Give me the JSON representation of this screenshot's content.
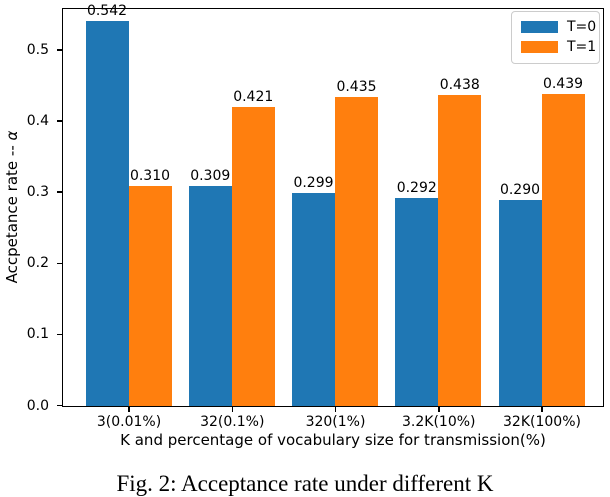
{
  "figure": {
    "ylabel_prefix": "Accpetance rate -- ",
    "ylabel_alpha": "α",
    "xlabel": "K and percentage of vocabulary size for transmission(%)",
    "caption": "Fig. 2: Acceptance rate under different K"
  },
  "legend": {
    "position": "upper right",
    "items": [
      {
        "label": "T=0",
        "color": "#1f77b4"
      },
      {
        "label": "T=1",
        "color": "#ff7f0e"
      }
    ]
  },
  "chart_data": {
    "type": "bar",
    "title": "",
    "categories": [
      "3(0.01%)",
      "32(0.1%)",
      "320(1%)",
      "3.2K(10%)",
      "32K(100%)"
    ],
    "series": [
      {
        "name": "T=0",
        "color": "#1f77b4",
        "values": [
          0.542,
          0.309,
          0.299,
          0.292,
          0.29
        ]
      },
      {
        "name": "T=1",
        "color": "#ff7f0e",
        "values": [
          0.31,
          0.421,
          0.435,
          0.438,
          0.439
        ]
      }
    ],
    "bar_value_labels": [
      "0.542",
      "0.310",
      "0.309",
      "0.421",
      "0.299",
      "0.435",
      "0.292",
      "0.438",
      "0.290",
      "0.439"
    ],
    "xlabel": "K and percentage of vocabulary size for transmission(%)",
    "ylabel": "Accpetance rate -- α",
    "ylim": [
      0,
      0.557
    ],
    "yticks": [
      "0.0",
      "0.1",
      "0.2",
      "0.3",
      "0.4",
      "0.5"
    ],
    "grid": false,
    "legend_position": "upper right"
  }
}
